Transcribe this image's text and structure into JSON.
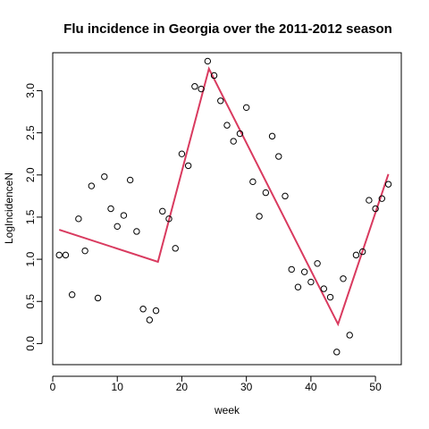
{
  "chart_data": {
    "type": "scatter",
    "title": "Flu incidence in Georgia over the 2011-2012 season",
    "xlabel": "week",
    "ylabel": "LogIncidenceN",
    "xlim": [
      0,
      54
    ],
    "ylim": [
      -0.25,
      3.45
    ],
    "xticks": [
      0,
      10,
      20,
      30,
      40,
      50
    ],
    "yticks": [
      0.0,
      0.5,
      1.0,
      1.5,
      2.0,
      2.5,
      3.0
    ],
    "xtick_labels": [
      "0",
      "10",
      "20",
      "30",
      "40",
      "50"
    ],
    "ytick_labels": [
      "0.0",
      "0.5",
      "1.0",
      "1.5",
      "2.0",
      "2.5",
      "3.0"
    ],
    "grid": false,
    "points": {
      "x": [
        1,
        2,
        3,
        4,
        5,
        6,
        7,
        8,
        9,
        10,
        11,
        12,
        13,
        14,
        15,
        16,
        17,
        18,
        19,
        20,
        21,
        22,
        23,
        24,
        25,
        26,
        27,
        28,
        29,
        30,
        31,
        32,
        33,
        34,
        35,
        36,
        37,
        38,
        39,
        40,
        41,
        42,
        43,
        44,
        45,
        46,
        47,
        48,
        49,
        50,
        51,
        52
      ],
      "y": [
        1.05,
        1.05,
        0.58,
        1.48,
        1.1,
        1.87,
        0.54,
        1.98,
        1.6,
        1.39,
        1.52,
        1.94,
        1.33,
        0.41,
        0.28,
        0.39,
        1.57,
        1.48,
        1.13,
        2.25,
        2.11,
        3.05,
        3.02,
        3.35,
        3.18,
        2.88,
        2.59,
        2.4,
        2.49,
        2.8,
        1.92,
        1.51,
        1.79,
        2.46,
        2.22,
        1.75,
        0.88,
        0.67,
        0.85,
        0.73,
        0.95,
        0.65,
        0.55,
        -0.1,
        0.77,
        0.1,
        1.05,
        1.09,
        1.7,
        1.6,
        1.72,
        1.89
      ]
    },
    "fit_line": {
      "x": [
        1,
        16.3,
        24.2,
        44.2,
        52
      ],
      "y": [
        1.35,
        0.97,
        3.26,
        0.23,
        2.01
      ],
      "color": "#d93a5f"
    },
    "colors": {
      "points": "#000000",
      "fit": "#d93a5f"
    }
  }
}
